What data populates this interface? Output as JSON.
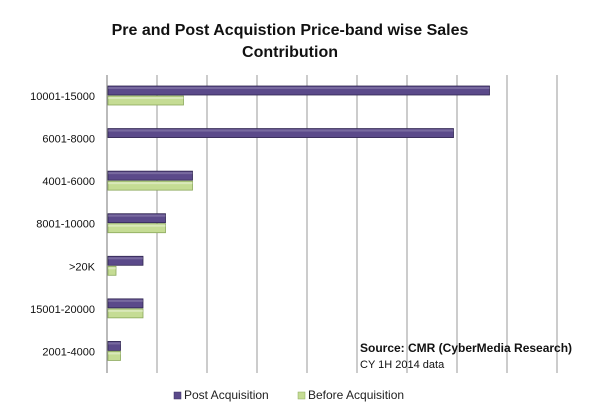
{
  "chart_data": {
    "type": "bar",
    "orientation": "horizontal",
    "title_line1": "Pre and Post Acquistion Price-band wise Sales",
    "title_line2": "Contribution",
    "categories": [
      "10001-15000",
      "6001-8000",
      "4001-6000",
      "8001-10000",
      ">20K",
      "15001-20000",
      "2001-4000"
    ],
    "series": [
      {
        "name": "Post Acquisition",
        "color": "#5b4a8a",
        "values": [
          85,
          77,
          19,
          13,
          8,
          8,
          3
        ]
      },
      {
        "name": "Before Acquisition",
        "color": "#c5dc94",
        "values": [
          17,
          0,
          19,
          13,
          2,
          8,
          3
        ]
      }
    ],
    "xlim": [
      0,
      100
    ],
    "grid": true,
    "legend_position": "bottom",
    "source_line1": "Source: CMR (CyberMedia Research)",
    "source_line2": "CY 1H 2014  data"
  }
}
